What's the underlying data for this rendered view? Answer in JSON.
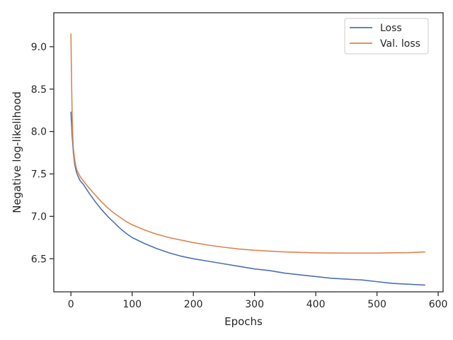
{
  "chart_data": {
    "type": "line",
    "title": "",
    "xlabel": "Epochs",
    "ylabel": "Negative log-likelihood",
    "xlim": [
      -28,
      608
    ],
    "ylim": [
      6.11,
      9.4
    ],
    "x_ticks": [
      0,
      100,
      200,
      300,
      400,
      500,
      600
    ],
    "y_ticks": [
      6.5,
      7.0,
      7.5,
      8.0,
      8.5,
      9.0
    ],
    "x_tick_labels": [
      "0",
      "100",
      "200",
      "300",
      "400",
      "500",
      "600"
    ],
    "y_tick_labels": [
      "6.5",
      "7.0",
      "7.5",
      "8.0",
      "8.5",
      "9.0"
    ],
    "grid": false,
    "legend_position": "top-right",
    "series": [
      {
        "name": "Loss",
        "color": "#4c72b0",
        "x": [
          0,
          2,
          4,
          6,
          8,
          10,
          15,
          20,
          30,
          40,
          50,
          60,
          70,
          80,
          90,
          100,
          120,
          140,
          160,
          180,
          200,
          225,
          250,
          275,
          300,
          325,
          350,
          375,
          400,
          425,
          450,
          475,
          500,
          525,
          550,
          578
        ],
        "y": [
          8.23,
          7.95,
          7.75,
          7.62,
          7.55,
          7.5,
          7.42,
          7.38,
          7.27,
          7.17,
          7.08,
          7.0,
          6.93,
          6.86,
          6.8,
          6.75,
          6.68,
          6.62,
          6.57,
          6.53,
          6.5,
          6.47,
          6.44,
          6.41,
          6.38,
          6.36,
          6.33,
          6.31,
          6.29,
          6.27,
          6.26,
          6.25,
          6.23,
          6.21,
          6.2,
          6.19
        ]
      },
      {
        "name": "Val. loss",
        "color": "#dd8452",
        "x": [
          0,
          1,
          2,
          3,
          4,
          6,
          8,
          10,
          15,
          20,
          30,
          40,
          50,
          60,
          70,
          80,
          90,
          100,
          120,
          140,
          160,
          180,
          200,
          225,
          250,
          275,
          300,
          325,
          350,
          375,
          400,
          425,
          450,
          475,
          500,
          525,
          550,
          578
        ],
        "y": [
          9.15,
          8.6,
          8.2,
          7.95,
          7.8,
          7.67,
          7.59,
          7.54,
          7.47,
          7.42,
          7.33,
          7.25,
          7.17,
          7.1,
          7.04,
          6.99,
          6.94,
          6.9,
          6.84,
          6.79,
          6.75,
          6.72,
          6.69,
          6.66,
          6.635,
          6.615,
          6.6,
          6.59,
          6.58,
          6.575,
          6.57,
          6.568,
          6.567,
          6.567,
          6.567,
          6.57,
          6.572,
          6.58
        ]
      }
    ]
  }
}
